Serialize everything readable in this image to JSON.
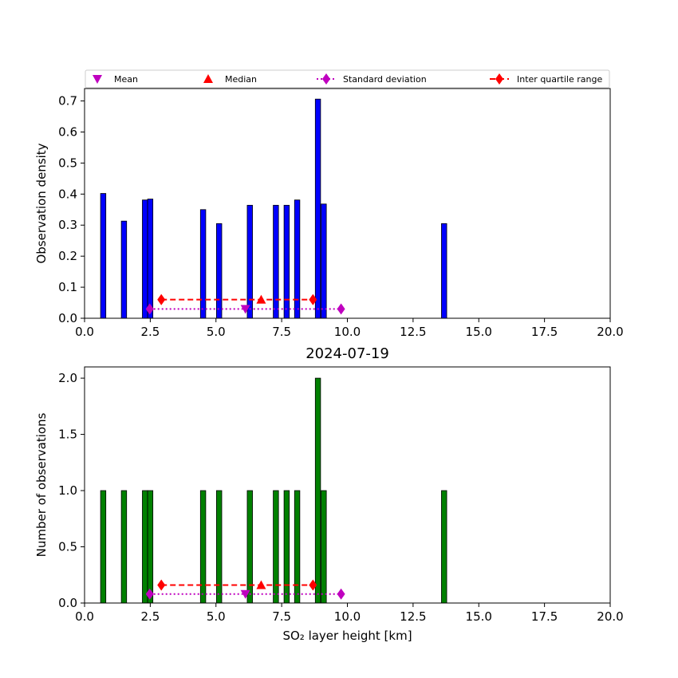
{
  "chart_data": [
    {
      "type": "bar",
      "title": "",
      "xlabel": "",
      "ylabel": "Observation density",
      "xlim": [
        0,
        20
      ],
      "ylim": [
        0,
        0.74
      ],
      "xticks": [
        0,
        2.5,
        5,
        7.5,
        10,
        12.5,
        15,
        17.5,
        20
      ],
      "xtick_labels": [
        "0.0",
        "2.5",
        "5.0",
        "7.5",
        "10.0",
        "12.5",
        "15.0",
        "17.5",
        "20.0"
      ],
      "yticks": [
        0,
        0.1,
        0.2,
        0.3,
        0.4,
        0.5,
        0.6,
        0.7
      ],
      "ytick_labels": [
        "0.0",
        "0.1",
        "0.2",
        "0.3",
        "0.4",
        "0.5",
        "0.6",
        "0.7"
      ],
      "bar_color": "#0000ff",
      "bins": [
        {
          "x": 0.71,
          "value": 0.402
        },
        {
          "x": 1.5,
          "value": 0.313
        },
        {
          "x": 2.3,
          "value": 0.381
        },
        {
          "x": 2.5,
          "value": 0.384
        },
        {
          "x": 4.51,
          "value": 0.35
        },
        {
          "x": 5.12,
          "value": 0.305
        },
        {
          "x": 6.29,
          "value": 0.364
        },
        {
          "x": 7.28,
          "value": 0.364
        },
        {
          "x": 7.69,
          "value": 0.364
        },
        {
          "x": 8.09,
          "value": 0.381
        },
        {
          "x": 8.88,
          "value": 0.706
        },
        {
          "x": 9.1,
          "value": 0.368
        },
        {
          "x": 13.68,
          "value": 0.305
        }
      ],
      "bin_width": 0.2,
      "statistics": {
        "mean": {
          "x": 6.12,
          "y": 0.03
        },
        "median": {
          "x": 6.72,
          "y": 0.06
        },
        "std": {
          "x_low": 2.48,
          "x_high": 9.76,
          "y": 0.03
        },
        "iqr": {
          "x_low": 2.92,
          "x_high": 8.69,
          "y": 0.06
        }
      },
      "legend": {
        "placement": "top",
        "entries": [
          {
            "label": "Mean",
            "marker": "triangle-down",
            "color": "#bf00bf"
          },
          {
            "label": "Median",
            "marker": "triangle-up",
            "color": "#ff0000"
          },
          {
            "label": "Standard deviation",
            "marker": "diamond",
            "color": "#bf00bf",
            "line": "dotted"
          },
          {
            "label": "Inter quartile range",
            "marker": "diamond",
            "color": "#ff0000",
            "line": "dashed"
          }
        ]
      }
    },
    {
      "type": "bar",
      "title": "2024-07-19",
      "xlabel": "SO₂ layer height [km]",
      "ylabel": "Number of observations",
      "xlim": [
        0,
        20
      ],
      "ylim": [
        0,
        2.1
      ],
      "xticks": [
        0,
        2.5,
        5,
        7.5,
        10,
        12.5,
        15,
        17.5,
        20
      ],
      "xtick_labels": [
        "0.0",
        "2.5",
        "5.0",
        "7.5",
        "10.0",
        "12.5",
        "15.0",
        "17.5",
        "20.0"
      ],
      "yticks": [
        0,
        0.5,
        1.0,
        1.5,
        2.0
      ],
      "ytick_labels": [
        "0.0",
        "0.5",
        "1.0",
        "1.5",
        "2.0"
      ],
      "bar_color": "#008000",
      "bins": [
        {
          "x": 0.71,
          "value": 1
        },
        {
          "x": 1.5,
          "value": 1
        },
        {
          "x": 2.3,
          "value": 1
        },
        {
          "x": 2.5,
          "value": 1
        },
        {
          "x": 4.51,
          "value": 1
        },
        {
          "x": 5.12,
          "value": 1
        },
        {
          "x": 6.29,
          "value": 1
        },
        {
          "x": 7.28,
          "value": 1
        },
        {
          "x": 7.69,
          "value": 1
        },
        {
          "x": 8.09,
          "value": 1
        },
        {
          "x": 8.88,
          "value": 2
        },
        {
          "x": 9.1,
          "value": 1
        },
        {
          "x": 13.68,
          "value": 1
        }
      ],
      "bin_width": 0.2,
      "statistics": {
        "mean": {
          "x": 6.12,
          "y": 0.08
        },
        "median": {
          "x": 6.72,
          "y": 0.16
        },
        "std": {
          "x_low": 2.48,
          "x_high": 9.76,
          "y": 0.08
        },
        "iqr": {
          "x_low": 2.92,
          "x_high": 8.69,
          "y": 0.16
        }
      }
    }
  ]
}
